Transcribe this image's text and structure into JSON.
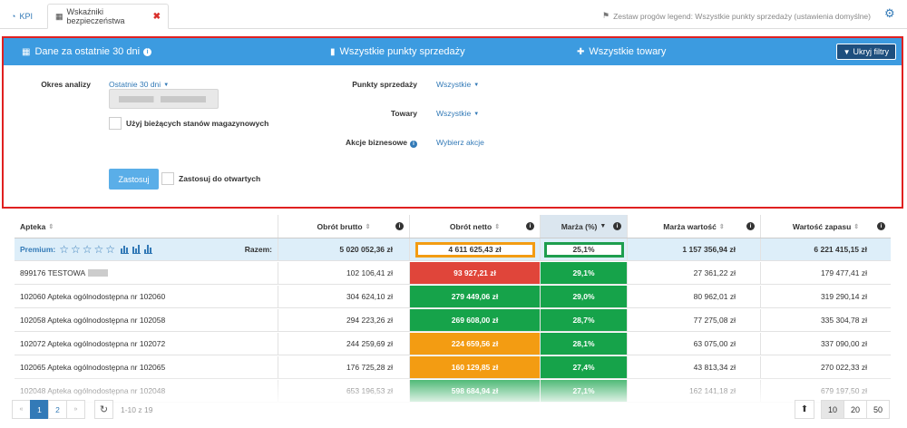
{
  "tabs": {
    "kpi": "KPI",
    "active": "Wskaźniki bezpieczeństwa"
  },
  "legend_set": "Zestaw progów legend: Wszystkie punkty sprzedaży (ustawienia domyślne)",
  "filter_header": {
    "date": "Dane za ostatnie 30 dni",
    "points": "Wszystkie punkty sprzedaży",
    "goods": "Wszystkie towary",
    "hide_button": "Ukryj filtry"
  },
  "filters": {
    "period_label": "Okres analizy",
    "period_value": "Ostatnie 30 dni",
    "current_stock_label": "Użyj bieżących stanów magazynowych",
    "points_label": "Punkty sprzedaży",
    "points_value": "Wszystkie",
    "goods_label": "Towary",
    "goods_value": "Wszystkie",
    "actions_label": "Akcje biznesowe",
    "actions_value": "Wybierz akcje",
    "apply_button": "Zastosuj",
    "apply_open_label": "Zastosuj do otwartych"
  },
  "table": {
    "headers": [
      "Apteka",
      "Obrót brutto",
      "Obrót netto",
      "Marża (%)",
      "Marża wartość",
      "Wartość zapasu"
    ],
    "summary": {
      "premium": "Premium:",
      "total_label": "Razem:",
      "gross": "5 020 052,36 zł",
      "net": "4 611 625,43 zł",
      "margin_pct": "25,1%",
      "margin_value": "1 157 356,94 zł",
      "stock_value": "6 221 415,15 zł"
    },
    "rows": [
      {
        "name": "899176 TESTOWA",
        "gross": "102 106,41 zł",
        "net": "93 927,21 zł",
        "net_color": "red",
        "margin": "29,1%",
        "margin_value": "27 361,22 zł",
        "stock": "179 477,41 zł"
      },
      {
        "name": "102060 Apteka ogólnodostępna nr 102060",
        "gross": "304 624,10 zł",
        "net": "279 449,06 zł",
        "net_color": "green",
        "margin": "29,0%",
        "margin_value": "80 962,01 zł",
        "stock": "319 290,14 zł"
      },
      {
        "name": "102058 Apteka ogólnodostępna nr 102058",
        "gross": "294 223,26 zł",
        "net": "269 608,00 zł",
        "net_color": "green",
        "margin": "28,7%",
        "margin_value": "77 275,08 zł",
        "stock": "335 304,78 zł"
      },
      {
        "name": "102072 Apteka ogólnodostępna nr 102072",
        "gross": "244 259,69 zł",
        "net": "224 659,56 zł",
        "net_color": "orange",
        "margin": "28,1%",
        "margin_value": "63 075,00 zł",
        "stock": "337 090,00 zł"
      },
      {
        "name": "102065 Apteka ogólnodostępna nr 102065",
        "gross": "176 725,28 zł",
        "net": "160 129,85 zł",
        "net_color": "orange",
        "margin": "27,4%",
        "margin_value": "43 813,34 zł",
        "stock": "270 022,33 zł"
      },
      {
        "name": "102048 Apteka ogólnodostępna nr 102048",
        "gross": "653 196,53 zł",
        "net": "598 684,94 zł",
        "net_color": "green",
        "margin": "27,1%",
        "margin_value": "162 141,18 zł",
        "stock": "679 197,50 zł"
      }
    ]
  },
  "pager": {
    "pages": [
      "1",
      "2"
    ],
    "range": "1-10 z 19",
    "sizes": [
      "10",
      "20",
      "50"
    ]
  },
  "colors": {
    "accent": "#3c9be0",
    "red": "#e0453a",
    "green": "#16a34a",
    "orange": "#f39c12"
  }
}
